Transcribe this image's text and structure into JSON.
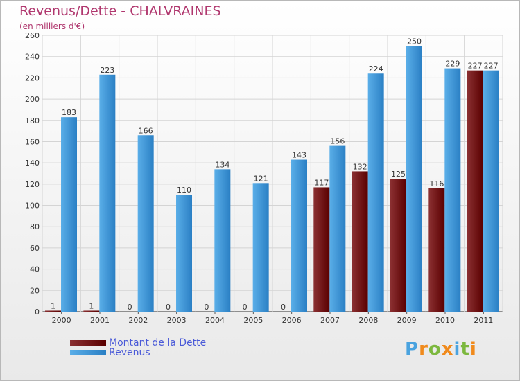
{
  "chart_data": {
    "type": "bar",
    "title": "Revenus/Dette - CHALVRAINES",
    "subtitle": "(en milliers d'€)",
    "categories": [
      "2000",
      "2001",
      "2002",
      "2003",
      "2004",
      "2005",
      "2006",
      "2007",
      "2008",
      "2009",
      "2010",
      "2011"
    ],
    "series": [
      {
        "name": "Montant de la Dette",
        "color": "#6a1010",
        "values": [
          1,
          1,
          0,
          0,
          0,
          0,
          0,
          117,
          132,
          125,
          116,
          227
        ]
      },
      {
        "name": "Revenus",
        "color": "#3d9ee6",
        "values": [
          183,
          223,
          166,
          110,
          134,
          121,
          143,
          156,
          224,
          250,
          229,
          227
        ]
      }
    ],
    "yticks": [
      0,
      20,
      40,
      60,
      80,
      100,
      120,
      140,
      160,
      180,
      200,
      220,
      240,
      260
    ],
    "ylim": [
      0,
      260
    ],
    "grid": true,
    "legend_position": "bottom-left"
  },
  "logo": {
    "letters": [
      "P",
      "r",
      "o",
      "x",
      "i",
      "t",
      "i"
    ],
    "colors": [
      "#4aa3df",
      "#f08a1c",
      "#7cb83e",
      "#f08a1c",
      "#4aa3df",
      "#7cb83e",
      "#f08a1c"
    ]
  }
}
